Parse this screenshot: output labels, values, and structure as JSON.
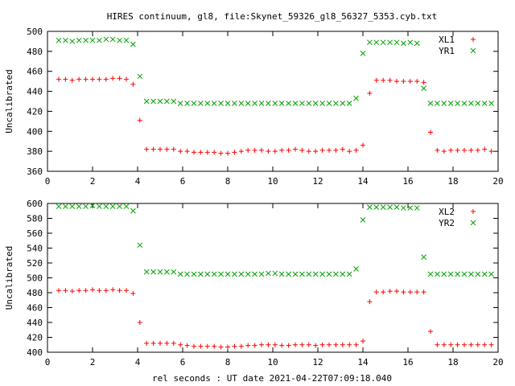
{
  "chart_data": {
    "type": "scatter",
    "title": "HIRES continuum, gl8, file:Skynet_59326_gl8_56327_5353.cyb.txt",
    "xlabel": "rel seconds : UT date 2021-04-22T07:09:18.040",
    "colors": {
      "L": "#ff0000",
      "R": "#00a000"
    },
    "panels": [
      {
        "ylabel": "Uncalibrated",
        "xlim": [
          0,
          20
        ],
        "ylim": [
          360,
          500
        ],
        "xticks": [
          "0",
          "2",
          "4",
          "6",
          "8",
          "10",
          "12",
          "14",
          "16",
          "18",
          "20"
        ],
        "yticks": [
          "360",
          "380",
          "400",
          "420",
          "440",
          "460",
          "480",
          "500"
        ],
        "series": [
          {
            "name": "XL1",
            "marker": "plus",
            "x": [
              0.5,
              0.8,
              1.1,
              1.4,
              1.7,
              2.0,
              2.3,
              2.6,
              2.9,
              3.2,
              3.5,
              3.8,
              4.1,
              4.4,
              4.7,
              5.0,
              5.3,
              5.6,
              5.9,
              6.2,
              6.5,
              6.8,
              7.1,
              7.4,
              7.7,
              8.0,
              8.3,
              8.6,
              8.9,
              9.2,
              9.5,
              9.8,
              10.1,
              10.4,
              10.7,
              11.0,
              11.3,
              11.6,
              11.9,
              12.2,
              12.5,
              12.8,
              13.1,
              13.4,
              13.7,
              14.0,
              14.3,
              14.6,
              14.9,
              15.2,
              15.5,
              15.8,
              16.1,
              16.4,
              16.7,
              17.0,
              17.3,
              17.6,
              17.9,
              18.2,
              18.5,
              18.8,
              19.1,
              19.4,
              19.7
            ],
            "y": [
              452,
              452,
              451,
              452,
              452,
              452,
              452,
              452,
              453,
              453,
              452,
              447,
              411,
              382,
              382,
              382,
              382,
              382,
              380,
              380,
              379,
              379,
              379,
              379,
              378,
              378,
              379,
              380,
              381,
              381,
              381,
              380,
              380,
              381,
              381,
              382,
              381,
              380,
              380,
              381,
              381,
              381,
              382,
              380,
              381,
              386,
              438,
              451,
              451,
              451,
              450,
              450,
              450,
              450,
              449,
              399,
              381,
              380,
              381,
              381,
              381,
              381,
              381,
              382,
              380
            ]
          },
          {
            "name": "YR1",
            "marker": "cross",
            "x": [
              0.5,
              0.8,
              1.1,
              1.4,
              1.7,
              2.0,
              2.3,
              2.6,
              2.9,
              3.2,
              3.5,
              3.8,
              4.1,
              4.4,
              4.7,
              5.0,
              5.3,
              5.6,
              5.9,
              6.2,
              6.5,
              6.8,
              7.1,
              7.4,
              7.7,
              8.0,
              8.3,
              8.6,
              8.9,
              9.2,
              9.5,
              9.8,
              10.1,
              10.4,
              10.7,
              11.0,
              11.3,
              11.6,
              11.9,
              12.2,
              12.5,
              12.8,
              13.1,
              13.4,
              13.7,
              14.0,
              14.3,
              14.6,
              14.9,
              15.2,
              15.5,
              15.8,
              16.1,
              16.4,
              16.7,
              17.0,
              17.3,
              17.6,
              17.9,
              18.2,
              18.5,
              18.8,
              19.1,
              19.4,
              19.7
            ],
            "y": [
              491,
              491,
              490,
              491,
              491,
              491,
              491,
              492,
              492,
              491,
              491,
              487,
              455,
              430,
              430,
              430,
              430,
              430,
              428,
              428,
              428,
              428,
              428,
              428,
              428,
              428,
              428,
              428,
              428,
              428,
              428,
              428,
              428,
              428,
              428,
              428,
              428,
              428,
              428,
              428,
              428,
              428,
              428,
              428,
              433,
              478,
              489,
              489,
              489,
              489,
              489,
              488,
              489,
              488,
              443,
              428,
              428,
              428,
              428,
              428,
              428,
              428,
              428,
              428,
              428
            ]
          }
        ]
      },
      {
        "ylabel": "Uncalibrated",
        "xlim": [
          0,
          20
        ],
        "ylim": [
          400,
          600
        ],
        "xticks": [
          "0",
          "2",
          "4",
          "6",
          "8",
          "10",
          "12",
          "14",
          "16",
          "18",
          "20"
        ],
        "yticks": [
          "400",
          "420",
          "440",
          "460",
          "480",
          "500",
          "520",
          "540",
          "560",
          "580",
          "600"
        ],
        "series": [
          {
            "name": "XL2",
            "marker": "plus",
            "x": [
              0.5,
              0.8,
              1.1,
              1.4,
              1.7,
              2.0,
              2.3,
              2.6,
              2.9,
              3.2,
              3.5,
              3.8,
              4.1,
              4.4,
              4.7,
              5.0,
              5.3,
              5.6,
              5.9,
              6.2,
              6.5,
              6.8,
              7.1,
              7.4,
              7.7,
              8.0,
              8.3,
              8.6,
              8.9,
              9.2,
              9.5,
              9.8,
              10.1,
              10.4,
              10.7,
              11.0,
              11.3,
              11.6,
              11.9,
              12.2,
              12.5,
              12.8,
              13.1,
              13.4,
              13.7,
              14.0,
              14.3,
              14.6,
              14.9,
              15.2,
              15.5,
              15.8,
              16.1,
              16.4,
              16.7,
              17.0,
              17.3,
              17.6,
              17.9,
              18.2,
              18.5,
              18.8,
              19.1,
              19.4,
              19.7
            ],
            "y": [
              483,
              483,
              482,
              483,
              483,
              484,
              483,
              483,
              484,
              483,
              483,
              479,
              440,
              412,
              412,
              412,
              412,
              412,
              410,
              409,
              408,
              408,
              408,
              408,
              407,
              407,
              408,
              408,
              409,
              409,
              410,
              410,
              410,
              409,
              409,
              410,
              410,
              410,
              409,
              410,
              410,
              410,
              410,
              410,
              410,
              415,
              468,
              481,
              481,
              482,
              482,
              481,
              481,
              481,
              481,
              428,
              410,
              410,
              410,
              410,
              410,
              410,
              410,
              410,
              410
            ]
          },
          {
            "name": "YR2",
            "marker": "cross",
            "x": [
              0.5,
              0.8,
              1.1,
              1.4,
              1.7,
              2.0,
              2.3,
              2.6,
              2.9,
              3.2,
              3.5,
              3.8,
              4.1,
              4.4,
              4.7,
              5.0,
              5.3,
              5.6,
              5.9,
              6.2,
              6.5,
              6.8,
              7.1,
              7.4,
              7.7,
              8.0,
              8.3,
              8.6,
              8.9,
              9.2,
              9.5,
              9.8,
              10.1,
              10.4,
              10.7,
              11.0,
              11.3,
              11.6,
              11.9,
              12.2,
              12.5,
              12.8,
              13.1,
              13.4,
              13.7,
              14.0,
              14.3,
              14.6,
              14.9,
              15.2,
              15.5,
              15.8,
              16.1,
              16.4,
              16.7,
              17.0,
              17.3,
              17.6,
              17.9,
              18.2,
              18.5,
              18.8,
              19.1,
              19.4,
              19.7
            ],
            "y": [
              596,
              596,
              596,
              596,
              596,
              597,
              596,
              596,
              596,
              596,
              596,
              590,
              544,
              508,
              508,
              508,
              508,
              508,
              505,
              505,
              505,
              505,
              505,
              505,
              505,
              505,
              505,
              505,
              505,
              505,
              505,
              506,
              506,
              505,
              505,
              505,
              505,
              505,
              505,
              505,
              505,
              505,
              505,
              505,
              512,
              578,
              595,
              595,
              595,
              595,
              595,
              594,
              594,
              594,
              528,
              505,
              505,
              505,
              505,
              505,
              505,
              505,
              505,
              505,
              505
            ]
          }
        ]
      }
    ]
  }
}
